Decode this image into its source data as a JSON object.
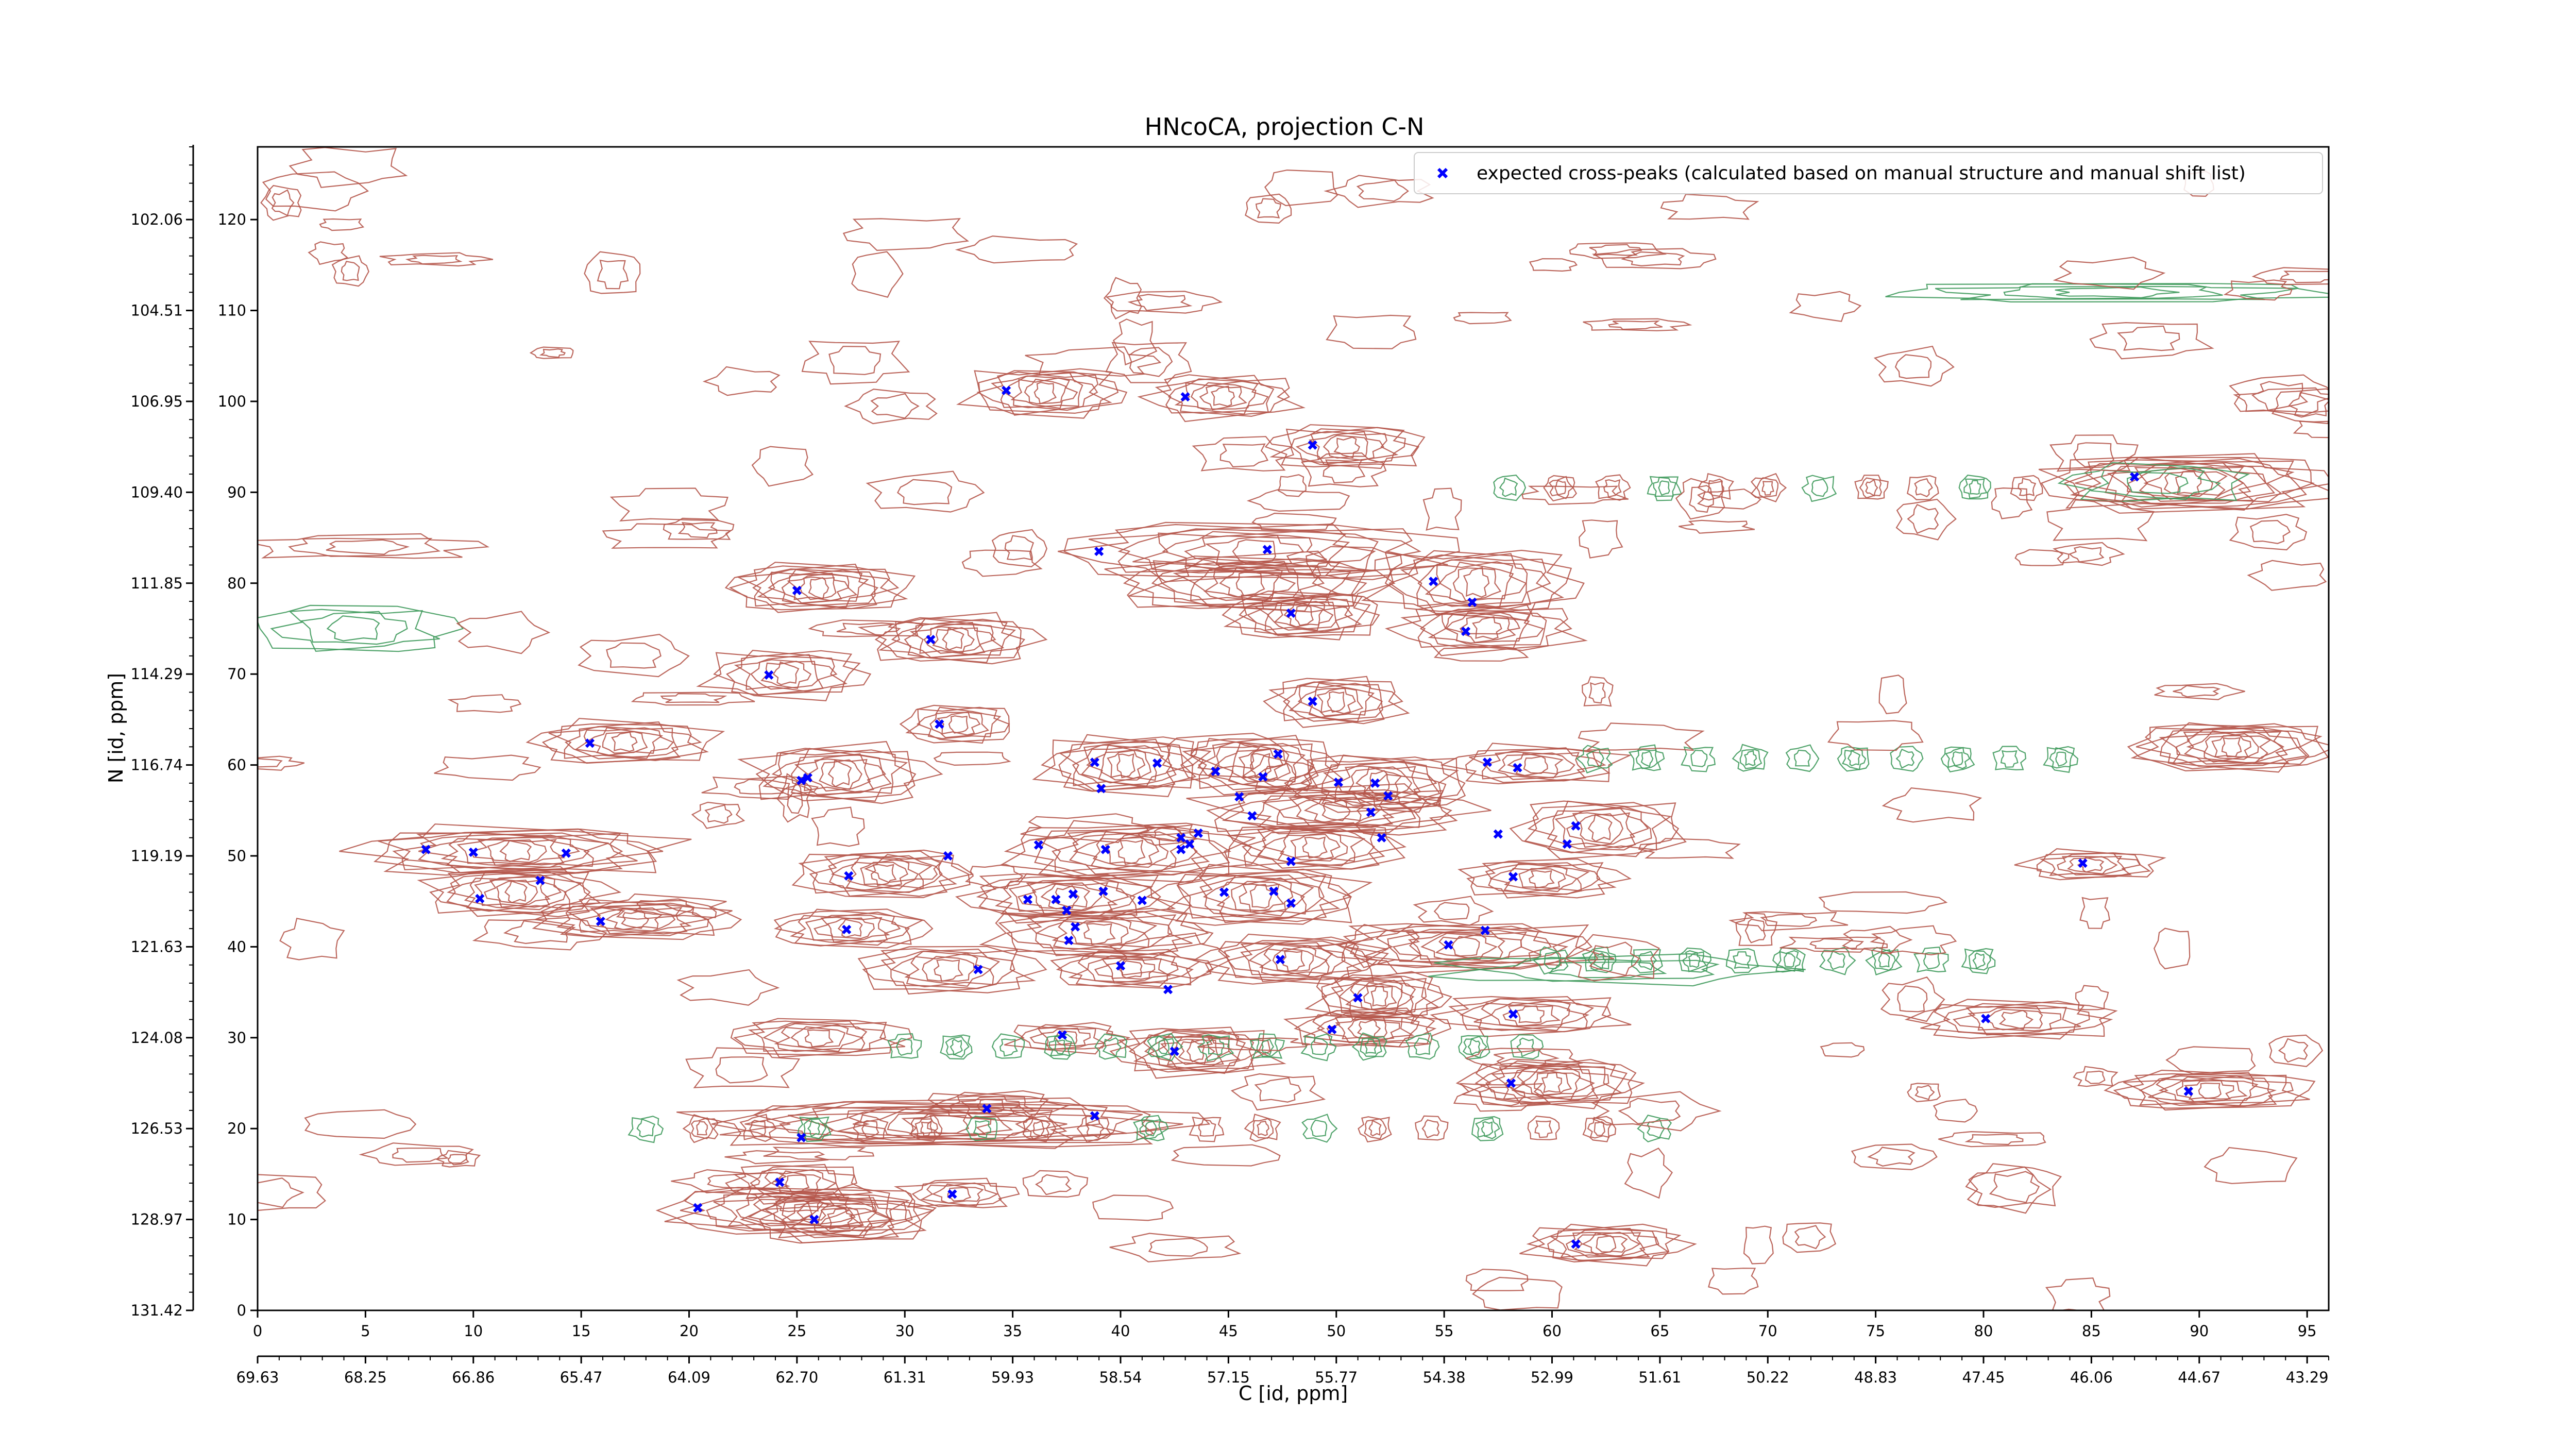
{
  "colors": {
    "positive_contour": "#b5564b",
    "negative_contour": "#3f9a5c",
    "expected_marker": "#0000ff"
  },
  "chart_data": {
    "type": "scatter",
    "title": "HNcoCA, projection C-N",
    "xlabel": "C [id, ppm]",
    "ylabel": "N [id, ppm]",
    "xlim": [
      0,
      96
    ],
    "ylim": [
      0,
      128
    ],
    "x_ticks": [
      "0",
      "5",
      "10",
      "15",
      "20",
      "25",
      "30",
      "35",
      "40",
      "45",
      "50",
      "55",
      "60",
      "65",
      "70",
      "75",
      "80",
      "85",
      "90",
      "95"
    ],
    "x_ppm_ticks": [
      "69.63",
      "68.25",
      "66.86",
      "65.47",
      "64.09",
      "62.70",
      "61.31",
      "59.93",
      "58.54",
      "57.15",
      "55.77",
      "54.38",
      "52.99",
      "51.61",
      "50.22",
      "48.83",
      "47.45",
      "46.06",
      "44.67",
      "43.29"
    ],
    "y_ticks": [
      "0",
      "10",
      "20",
      "30",
      "40",
      "50",
      "60",
      "70",
      "80",
      "90",
      "100",
      "110",
      "120"
    ],
    "y_ppm_ticks": [
      "131.42",
      "128.97",
      "126.53",
      "124.08",
      "121.63",
      "119.19",
      "116.74",
      "114.29",
      "111.85",
      "109.40",
      "106.95",
      "104.51",
      "102.06"
    ],
    "legend": {
      "placement": "top-right",
      "entries": [
        "expected cross-peaks (calculated based on manual structure and manual shift list)"
      ]
    },
    "series": [
      {
        "name": "expected cross-peaks (calculated based on manual structure and manual shift list)",
        "marker": "x",
        "points": [
          [
            34.7,
            101.2
          ],
          [
            43.0,
            100.5
          ],
          [
            48.9,
            95.2
          ],
          [
            39.0,
            83.5
          ],
          [
            46.8,
            83.7
          ],
          [
            54.5,
            80.2
          ],
          [
            25.0,
            79.2
          ],
          [
            56.3,
            77.9
          ],
          [
            47.9,
            76.7
          ],
          [
            56.0,
            74.7
          ],
          [
            31.2,
            73.8
          ],
          [
            23.7,
            69.9
          ],
          [
            48.9,
            67.0
          ],
          [
            31.6,
            64.5
          ],
          [
            15.4,
            62.4
          ],
          [
            38.8,
            60.3
          ],
          [
            41.7,
            60.2
          ],
          [
            44.4,
            59.3
          ],
          [
            47.3,
            61.2
          ],
          [
            57.0,
            60.3
          ],
          [
            58.4,
            59.7
          ],
          [
            25.2,
            58.3
          ],
          [
            25.5,
            58.6
          ],
          [
            46.6,
            58.7
          ],
          [
            50.1,
            58.1
          ],
          [
            51.8,
            58.0
          ],
          [
            39.1,
            57.4
          ],
          [
            45.5,
            56.5
          ],
          [
            52.4,
            56.6
          ],
          [
            51.6,
            54.8
          ],
          [
            46.1,
            54.4
          ],
          [
            61.1,
            53.3
          ],
          [
            57.5,
            52.4
          ],
          [
            43.6,
            52.5
          ],
          [
            42.8,
            52.0
          ],
          [
            42.8,
            50.7
          ],
          [
            43.2,
            51.3
          ],
          [
            52.1,
            52.0
          ],
          [
            7.8,
            50.7
          ],
          [
            10.0,
            50.4
          ],
          [
            14.3,
            50.3
          ],
          [
            36.2,
            51.2
          ],
          [
            39.3,
            50.7
          ],
          [
            60.7,
            51.3
          ],
          [
            32.0,
            50.0
          ],
          [
            47.9,
            49.4
          ],
          [
            84.6,
            49.2
          ],
          [
            27.4,
            47.8
          ],
          [
            13.1,
            47.3
          ],
          [
            58.2,
            47.7
          ],
          [
            10.3,
            45.3
          ],
          [
            35.7,
            45.2
          ],
          [
            37.0,
            45.2
          ],
          [
            37.8,
            45.8
          ],
          [
            39.2,
            46.1
          ],
          [
            41.0,
            45.1
          ],
          [
            44.8,
            46.0
          ],
          [
            47.1,
            46.1
          ],
          [
            47.9,
            44.8
          ],
          [
            37.5,
            44.0
          ],
          [
            15.9,
            42.8
          ],
          [
            37.9,
            42.2
          ],
          [
            27.3,
            41.9
          ],
          [
            37.6,
            40.7
          ],
          [
            56.9,
            41.8
          ],
          [
            55.2,
            40.2
          ],
          [
            47.4,
            38.6
          ],
          [
            33.4,
            37.5
          ],
          [
            40.0,
            37.9
          ],
          [
            42.2,
            35.3
          ],
          [
            51.0,
            34.4
          ],
          [
            58.2,
            32.6
          ],
          [
            80.1,
            32.1
          ],
          [
            49.8,
            30.9
          ],
          [
            37.3,
            30.3
          ],
          [
            42.5,
            28.5
          ],
          [
            58.1,
            25.0
          ],
          [
            89.5,
            24.1
          ],
          [
            33.8,
            22.2
          ],
          [
            38.8,
            21.4
          ],
          [
            25.2,
            19.0
          ],
          [
            24.2,
            14.1
          ],
          [
            32.2,
            12.8
          ],
          [
            20.4,
            11.3
          ],
          [
            25.8,
            10.0
          ],
          [
            61.1,
            7.3
          ],
          [
            87.0,
            91.7
          ]
        ]
      }
    ]
  }
}
